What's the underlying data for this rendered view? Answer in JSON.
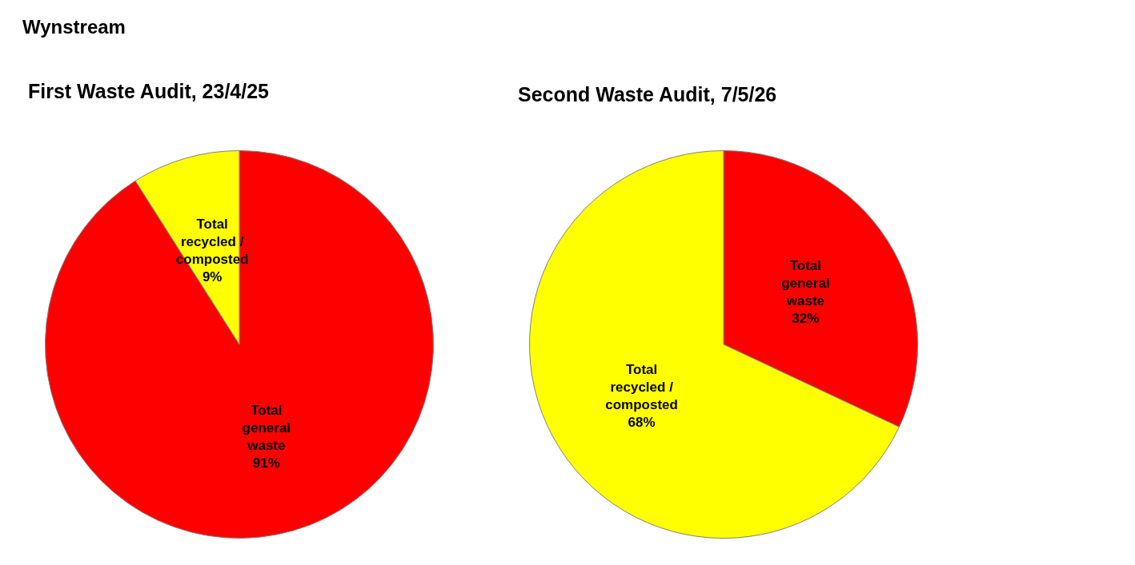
{
  "chart_data": [
    {
      "type": "pie",
      "title": "First Waste Audit, 23/4/25",
      "annotations": [
        "Wynstream"
      ],
      "categories": [
        "Total general waste",
        "Total recycled / composted"
      ],
      "values": [
        91,
        9
      ],
      "value_labels": [
        "91%",
        "9%"
      ],
      "colors": [
        "#ff0000",
        "#ffff00"
      ],
      "legend": false
    },
    {
      "type": "pie",
      "title": "Second Waste Audit, 7/5/26",
      "categories": [
        "Total general waste",
        "Total recycled / composted"
      ],
      "values": [
        32,
        68
      ],
      "value_labels": [
        "32%",
        "68%"
      ],
      "colors": [
        "#ff0000",
        "#ffff00"
      ],
      "legend": false
    }
  ]
}
